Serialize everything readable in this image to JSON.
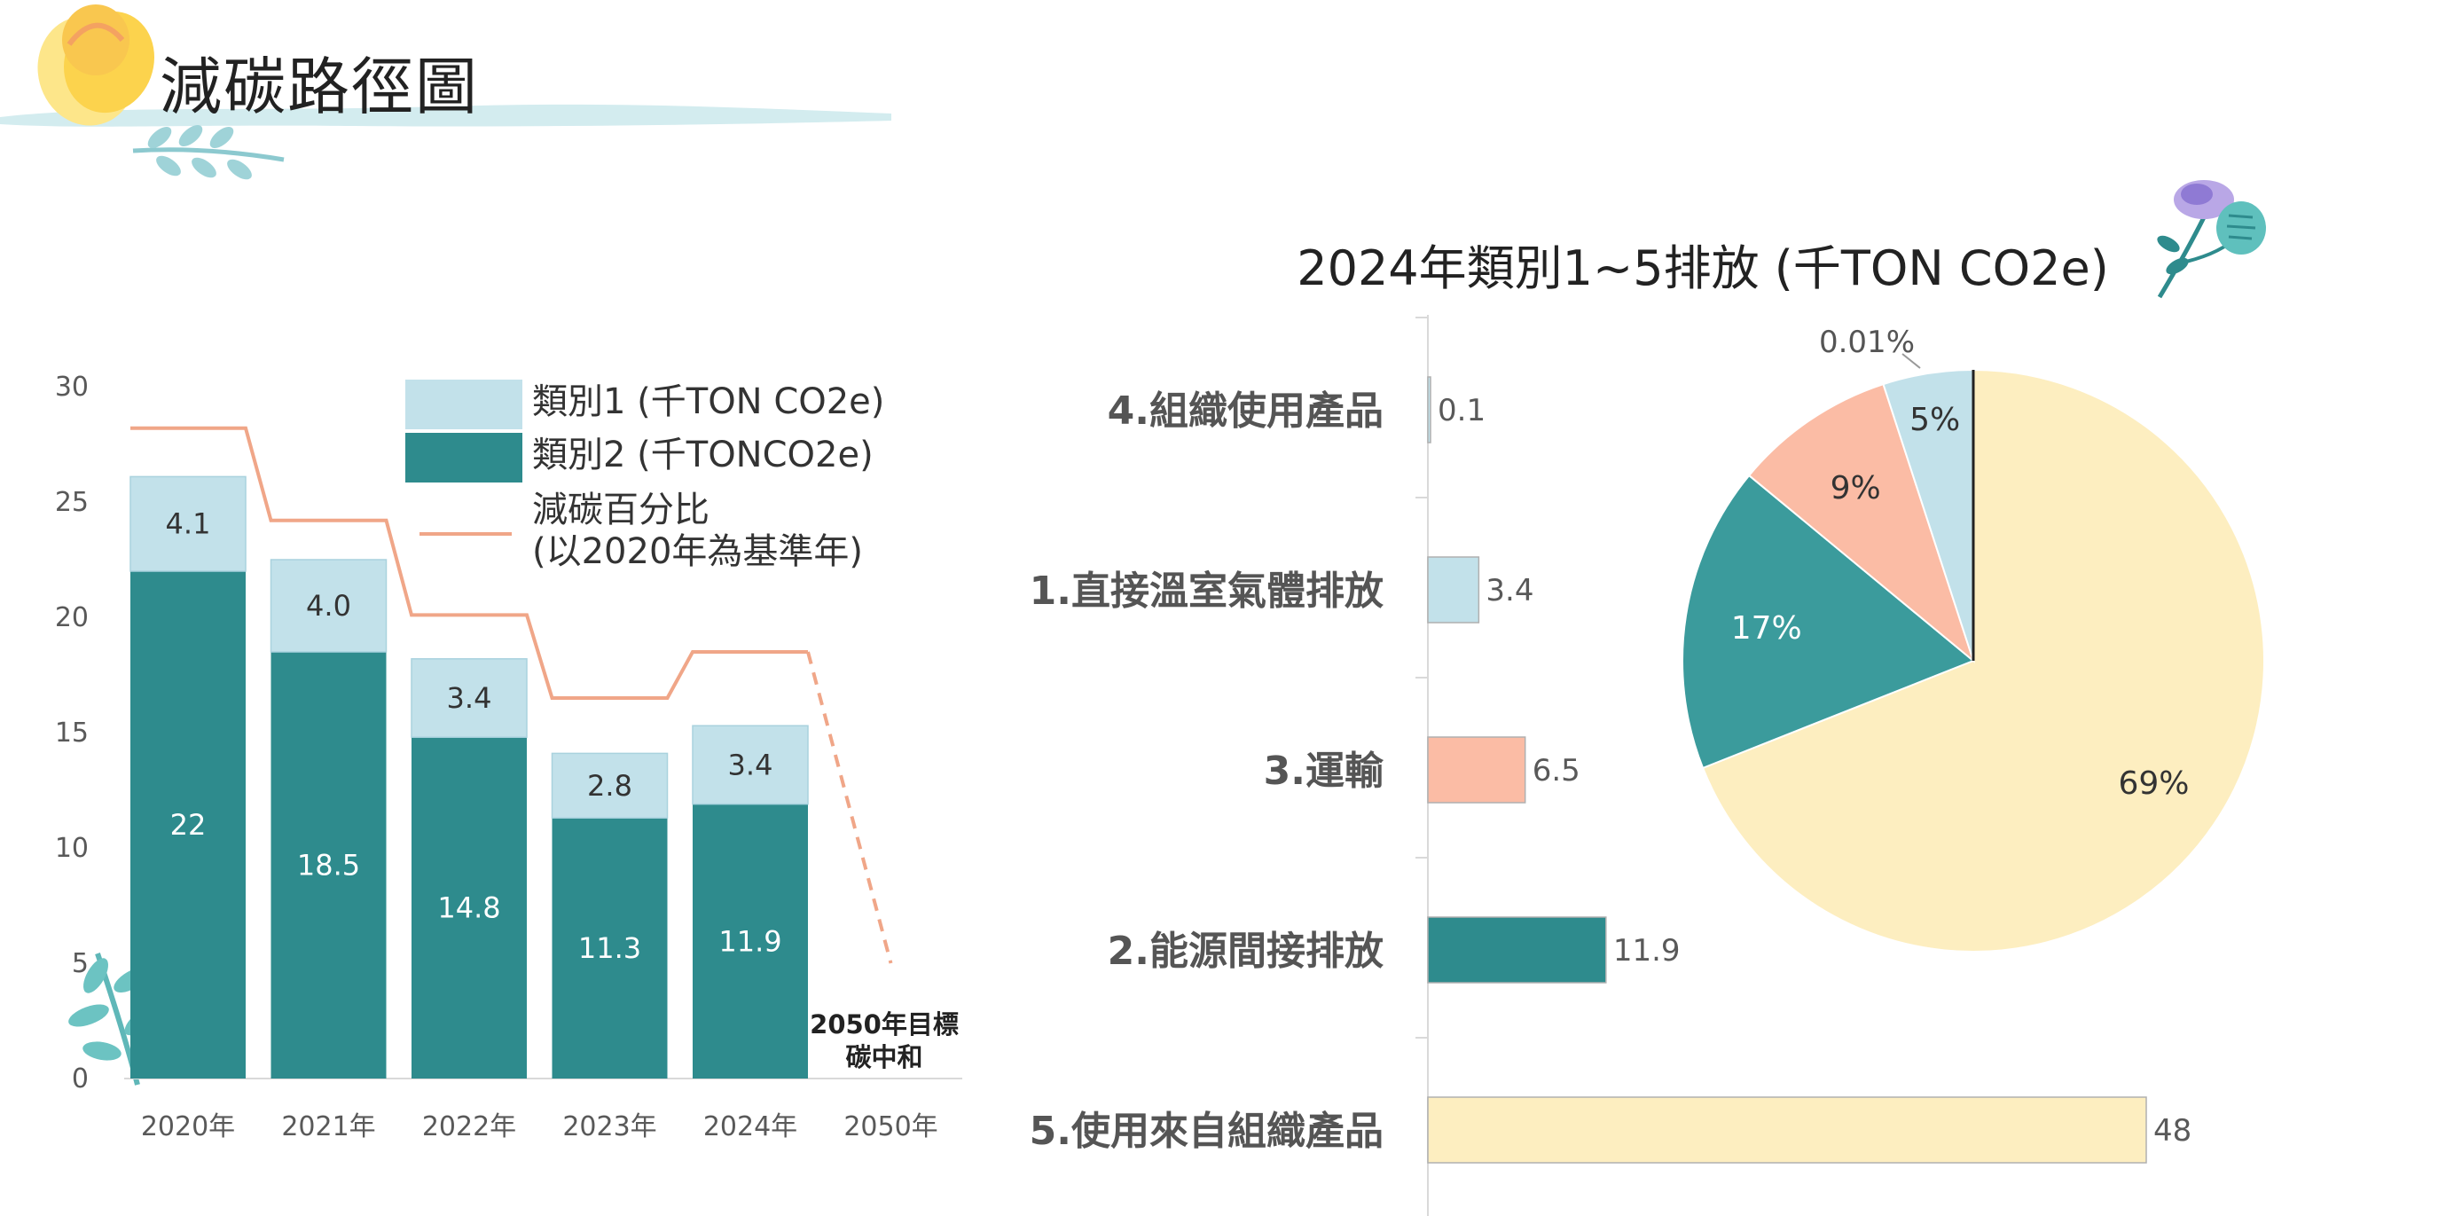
{
  "page": {
    "title": "減碳路徑圖"
  },
  "colors": {
    "teal": "#2e8b8d",
    "light_blue": "#c2e1ea",
    "salmon": "#fbbca5",
    "cream": "#fdeec0",
    "pie_teal": "#3b9b9c",
    "reduction_line": "#f0a688",
    "brush": "#d3ecef",
    "axis": "#d9d9d9"
  },
  "chart_data": [
    {
      "type": "bar",
      "stacked": true,
      "categories": [
        "2020年",
        "2021年",
        "2022年",
        "2023年",
        "2024年",
        "2050年"
      ],
      "series": [
        {
          "name": "類別2 (千TONCO2e)",
          "values": [
            22,
            18.5,
            14.8,
            11.3,
            11.9,
            null
          ],
          "color": "#2e8b8d"
        },
        {
          "name": "類別1 (千TON CO2e)",
          "values": [
            4.1,
            4.0,
            3.4,
            2.8,
            3.4,
            null
          ],
          "color": "#c2e1ea"
        }
      ],
      "line": {
        "name_line1": "減碳百分比",
        "name_line2": "(以2020年為基準年)",
        "values": [
          28.2,
          24.2,
          20.1,
          16.5,
          18.5,
          5
        ],
        "dashed_last_segment": true,
        "color": "#f0a688"
      },
      "ylim": [
        0,
        30
      ],
      "yticks": [
        "0",
        "5",
        "10",
        "15",
        "20",
        "25",
        "30"
      ],
      "annotation": {
        "line1": "2050年目標",
        "line2": "碳中和"
      },
      "legend_position": "top-right",
      "grid": false
    },
    {
      "type": "bar",
      "orientation": "horizontal",
      "title": "2024年類別1~5排放 (千TON CO2e)",
      "categories": [
        "4.組織使用產品",
        "1.直接溫室氣體排放",
        "3.運輸",
        "2.能源間接排放",
        "5.使用來自組織產品"
      ],
      "values": [
        0.1,
        3.4,
        6.5,
        11.9,
        48
      ],
      "labels": [
        "0.1",
        "3.4",
        "6.5",
        "11.9",
        "48"
      ],
      "colors": [
        "#c2e1ea",
        "#c2e1ea",
        "#fbbca5",
        "#2e8b8d",
        "#fdeec0"
      ],
      "xlim": [
        0,
        48
      ]
    },
    {
      "type": "pie",
      "slices": [
        {
          "label": "69%",
          "value": 69,
          "color": "#fdeec0"
        },
        {
          "label": "17%",
          "value": 17,
          "color": "#3b9b9c"
        },
        {
          "label": "9%",
          "value": 9,
          "color": "#fbbca5"
        },
        {
          "label": "5%",
          "value": 5,
          "color": "#c2e1ea"
        },
        {
          "label": "0.01%",
          "value": 0.01,
          "color": "#ffffff"
        }
      ],
      "start": "top",
      "direction": "clockwise"
    }
  ]
}
